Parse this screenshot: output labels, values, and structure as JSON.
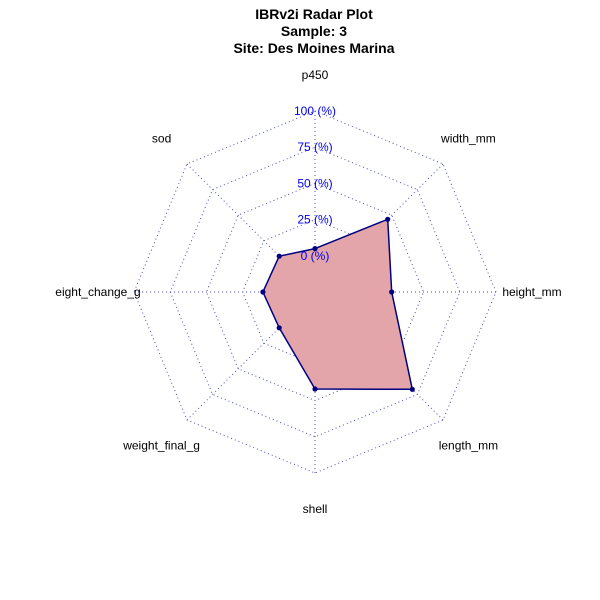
{
  "chart_data": {
    "type": "radar",
    "title": "IBRv2i Radar Plot",
    "subtitle_lines": [
      "Sample: 3",
      "Site: Des Moines Marina"
    ],
    "axes": [
      "p450",
      "width_mm",
      "height_mm",
      "length_mm",
      "shell",
      "weight_final_g",
      "eight_change_g",
      "sod"
    ],
    "tick_labels": [
      "0 (%)",
      "25 (%)",
      "50 (%)",
      "75 (%)",
      "100 (%)"
    ],
    "tick_values": [
      0,
      25,
      50,
      75,
      100
    ],
    "rlim": [
      -25,
      100
    ],
    "grid": true,
    "series": [
      {
        "values": [
          5,
          46,
          28,
          70,
          42,
          10,
          11,
          10
        ]
      }
    ],
    "colors": {
      "grid": "#4b4bc8",
      "tick_text": "#0000ee",
      "fill": "#e3a5a9",
      "line": "#000080",
      "point": "#000080"
    }
  }
}
